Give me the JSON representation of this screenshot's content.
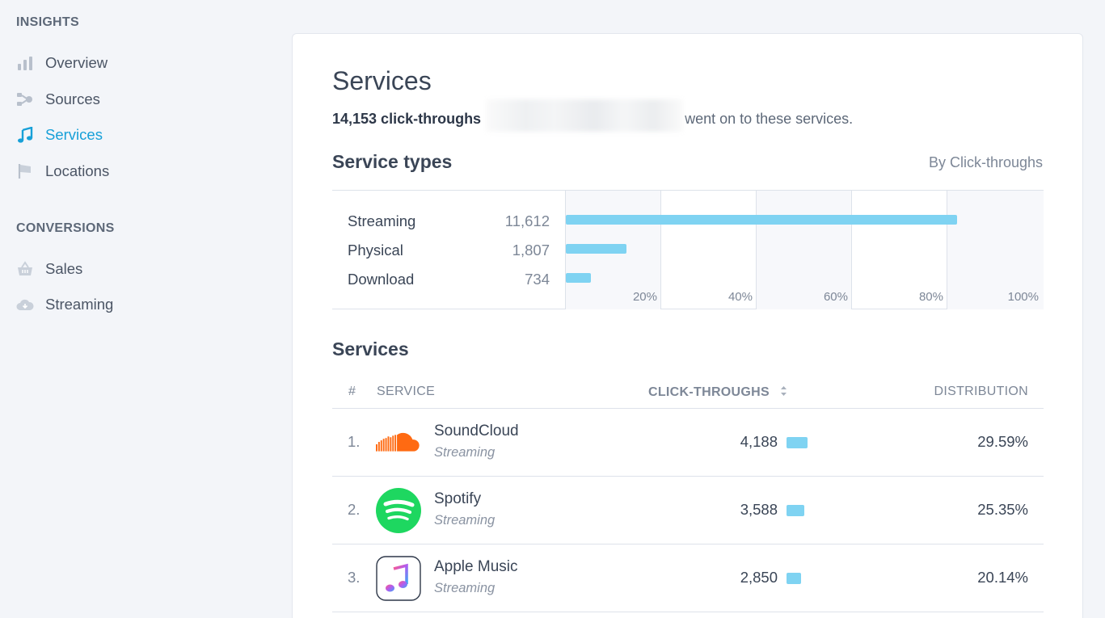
{
  "sidebar": {
    "insights_title": "INSIGHTS",
    "insights_items": [
      {
        "label": "Overview",
        "icon": "bar-chart-icon",
        "active": false
      },
      {
        "label": "Sources",
        "icon": "share-nodes-icon",
        "active": false
      },
      {
        "label": "Services",
        "icon": "music-note-icon",
        "active": true
      },
      {
        "label": "Locations",
        "icon": "flag-icon",
        "active": false
      }
    ],
    "conversions_title": "CONVERSIONS",
    "conversions_items": [
      {
        "label": "Sales",
        "icon": "basket-icon",
        "active": false
      },
      {
        "label": "Streaming",
        "icon": "cloud-icon",
        "active": false
      }
    ]
  },
  "main": {
    "title": "Services",
    "summary_count": "14,153 click-throughs",
    "summary_suffix": "went on to these services.",
    "service_types": {
      "title": "Service types",
      "sort_label": "By Click-throughs",
      "rows": [
        {
          "name": "Streaming",
          "value": "11,612",
          "percent": 82.05
        },
        {
          "name": "Physical",
          "value": "1,807",
          "percent": 12.77
        },
        {
          "name": "Download",
          "value": "734",
          "percent": 5.19
        }
      ],
      "ticks": [
        "20%",
        "40%",
        "60%",
        "80%",
        "100%"
      ]
    },
    "services": {
      "title": "Services",
      "headers": {
        "rank": "#",
        "service": "SERVICE",
        "clicks": "CLICK-THROUGHS",
        "distribution": "DISTRIBUTION"
      },
      "rows": [
        {
          "rank": "1.",
          "name": "SoundCloud",
          "type": "Streaming",
          "clicks": "4,188",
          "distribution": "29.59%",
          "share": 29.59,
          "logo": "soundcloud-logo"
        },
        {
          "rank": "2.",
          "name": "Spotify",
          "type": "Streaming",
          "clicks": "3,588",
          "distribution": "25.35%",
          "share": 25.35,
          "logo": "spotify-logo"
        },
        {
          "rank": "3.",
          "name": "Apple Music",
          "type": "Streaming",
          "clicks": "2,850",
          "distribution": "20.14%",
          "share": 20.14,
          "logo": "apple-music-logo"
        }
      ]
    }
  },
  "colors": {
    "accent": "#17a0d8",
    "bar": "#7fd3f2",
    "soundcloud": "#ff6a12",
    "spotify": "#1ed760"
  }
}
